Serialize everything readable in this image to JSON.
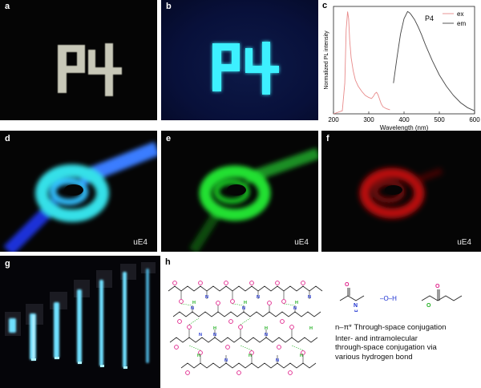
{
  "panels": {
    "a": {
      "label": "a",
      "text": "P4"
    },
    "b": {
      "label": "b",
      "text": "P4"
    },
    "c": {
      "label": "c"
    },
    "d": {
      "label": "d",
      "caption": "uE4"
    },
    "e": {
      "label": "e",
      "caption": "uE4"
    },
    "f": {
      "label": "f",
      "caption": "uE4"
    },
    "g": {
      "label": "g"
    },
    "h": {
      "label": "h",
      "oh_group": "–O–H",
      "text_line1": "n–π* Through-space conjugation",
      "text_line2": "Inter- and intramolecular",
      "text_line3": "through-space conjugation via",
      "text_line4": "various hydrogen bond"
    }
  },
  "chart_data": {
    "type": "line",
    "xlabel": "Wavelength (nm)",
    "ylabel": "Normalized PL intensity",
    "xlim": [
      200,
      600
    ],
    "ylim": [
      0,
      1.05
    ],
    "xticks": [
      "200",
      "300",
      "400",
      "500",
      "600"
    ],
    "annotation": "P4",
    "legend": [
      "ex",
      "em"
    ],
    "legend_position": "top-right",
    "grid": false,
    "series": [
      {
        "name": "ex",
        "color": "#e88a8a",
        "x": [
          200,
          225,
          232,
          236,
          240,
          243,
          246,
          250,
          256,
          262,
          270,
          280,
          290,
          300,
          308,
          313,
          318,
          322,
          326,
          330,
          335,
          340,
          350,
          360
        ],
        "y": [
          0.0,
          0.03,
          0.3,
          0.82,
          1.0,
          0.93,
          0.72,
          0.55,
          0.42,
          0.33,
          0.27,
          0.22,
          0.18,
          0.16,
          0.15,
          0.17,
          0.2,
          0.21,
          0.19,
          0.15,
          0.1,
          0.07,
          0.05,
          0.04
        ]
      },
      {
        "name": "em",
        "color": "#444444",
        "x": [
          370,
          380,
          390,
          400,
          410,
          415,
          420,
          430,
          440,
          450,
          460,
          470,
          480,
          500,
          520,
          540,
          560,
          580,
          600
        ],
        "y": [
          0.3,
          0.55,
          0.78,
          0.93,
          1.0,
          0.99,
          0.97,
          0.92,
          0.85,
          0.77,
          0.68,
          0.6,
          0.52,
          0.38,
          0.27,
          0.18,
          0.11,
          0.06,
          0.03
        ]
      }
    ]
  },
  "colors": {
    "photo_bg": "#050505",
    "tape": "#c8c8b8",
    "cyan_glow": "#3ef0ff",
    "blue_tube": "#2a6cff",
    "green_tube": "#19d82a",
    "red_tube": "#c81010",
    "carbonyl_O": "#e0208a",
    "amide_N": "#1a2fd0",
    "hbond_H": "#20b020"
  }
}
